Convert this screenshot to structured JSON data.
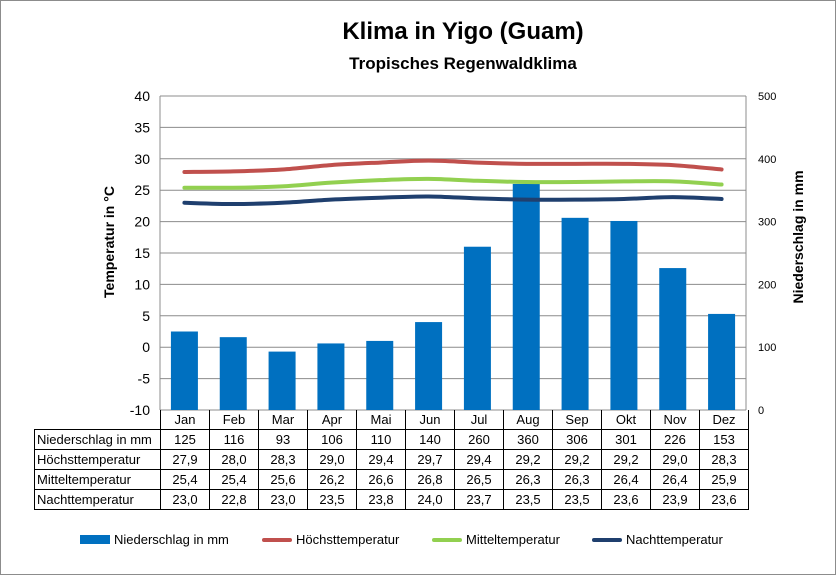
{
  "chart_data": {
    "type": "bar+line",
    "title": "Klima in Yigo (Guam)",
    "subtitle": "Tropisches Regenwaldklima",
    "ylabel_left": "Temperatur in °C",
    "ylabel_right": "Niederschlag in mm",
    "ylim_left": [
      -10,
      40
    ],
    "yticks_left": [
      "-10",
      "-5",
      "0",
      "5",
      "10",
      "15",
      "20",
      "25",
      "30",
      "35",
      "40"
    ],
    "ylim_right": [
      0,
      500
    ],
    "yticks_right": [
      "0",
      "100",
      "200",
      "300",
      "400",
      "500"
    ],
    "categories": [
      "Jan",
      "Feb",
      "Mar",
      "Apr",
      "Mai",
      "Jun",
      "Jul",
      "Aug",
      "Sep",
      "Okt",
      "Nov",
      "Dez"
    ],
    "series": [
      {
        "name": "Niederschlag in mm",
        "kind": "bar",
        "axis": "right",
        "color": "#0070c0",
        "values": [
          125,
          116,
          93,
          106,
          110,
          140,
          260,
          360,
          306,
          301,
          226,
          153
        ],
        "labels": [
          "125",
          "116",
          "93",
          "106",
          "110",
          "140",
          "260",
          "360",
          "306",
          "301",
          "226",
          "153"
        ]
      },
      {
        "name": "Höchsttemperatur",
        "kind": "line",
        "axis": "left",
        "color": "#c0504d",
        "values": [
          27.9,
          28.0,
          28.3,
          29.0,
          29.4,
          29.7,
          29.4,
          29.2,
          29.2,
          29.2,
          29.0,
          28.3
        ],
        "labels": [
          "27,9",
          "28,0",
          "28,3",
          "29,0",
          "29,4",
          "29,7",
          "29,4",
          "29,2",
          "29,2",
          "29,2",
          "29,0",
          "28,3"
        ]
      },
      {
        "name": "Mitteltemperatur",
        "kind": "line",
        "axis": "left",
        "color": "#92d050",
        "values": [
          25.4,
          25.4,
          25.6,
          26.2,
          26.6,
          26.8,
          26.5,
          26.3,
          26.3,
          26.4,
          26.4,
          25.9
        ],
        "labels": [
          "25,4",
          "25,4",
          "25,6",
          "26,2",
          "26,6",
          "26,8",
          "26,5",
          "26,3",
          "26,3",
          "26,4",
          "26,4",
          "25,9"
        ]
      },
      {
        "name": "Nachttemperatur",
        "kind": "line",
        "axis": "left",
        "color": "#1f3f6e",
        "values": [
          23.0,
          22.8,
          23.0,
          23.5,
          23.8,
          24.0,
          23.7,
          23.5,
          23.5,
          23.6,
          23.9,
          23.6
        ],
        "labels": [
          "23,0",
          "22,8",
          "23,0",
          "23,5",
          "23,8",
          "24,0",
          "23,7",
          "23,5",
          "23,5",
          "23,6",
          "23,9",
          "23,6"
        ]
      }
    ]
  }
}
